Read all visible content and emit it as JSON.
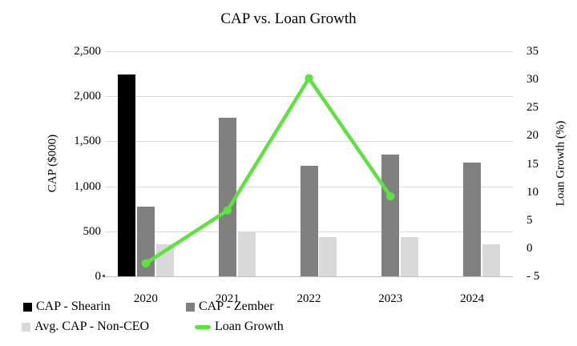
{
  "title": "CAP vs. Loan Growth",
  "chart_data": {
    "type": "combo-bar-line",
    "title": "CAP vs. Loan Growth",
    "categories": [
      "2020",
      "2021",
      "2022",
      "2023",
      "2024"
    ],
    "series": [
      {
        "name": "CAP - Shearin",
        "type": "bar",
        "axis": "left",
        "color": "#000000",
        "values": [
          2240,
          null,
          null,
          null,
          null
        ]
      },
      {
        "name": "CAP - Zember",
        "type": "bar",
        "axis": "left",
        "color": "#808080",
        "values": [
          770,
          1760,
          1230,
          1350,
          1265
        ]
      },
      {
        "name": "Avg. CAP - Non-CEO",
        "type": "bar",
        "axis": "left",
        "color": "#d9d9d9",
        "values": [
          360,
          490,
          435,
          435,
          355
        ]
      },
      {
        "name": "Loan Growth",
        "type": "line",
        "axis": "right",
        "color": "#5ee23f",
        "values": [
          -2.7,
          6.7,
          30.2,
          9.2,
          null
        ]
      }
    ],
    "left_axis": {
      "title": "CAP ($000)",
      "min": 0,
      "max": 2500,
      "step": 500,
      "tick_labels": [
        "0",
        "500",
        "1,000",
        "1,500",
        "2,000",
        "2,500"
      ]
    },
    "right_axis": {
      "title": "Loan Growth (%)",
      "min": -5,
      "max": 35,
      "step": 5,
      "tick_labels": [
        "- 5",
        "0",
        "5",
        "10",
        "15",
        "20",
        "25",
        "30",
        "35"
      ]
    },
    "grid": "horizontal",
    "legend_position": "bottom-left-two-rows"
  },
  "colors": {
    "gridline": "#d9d9d9",
    "axis_line": "#bfbfbf",
    "text": "#000000"
  }
}
